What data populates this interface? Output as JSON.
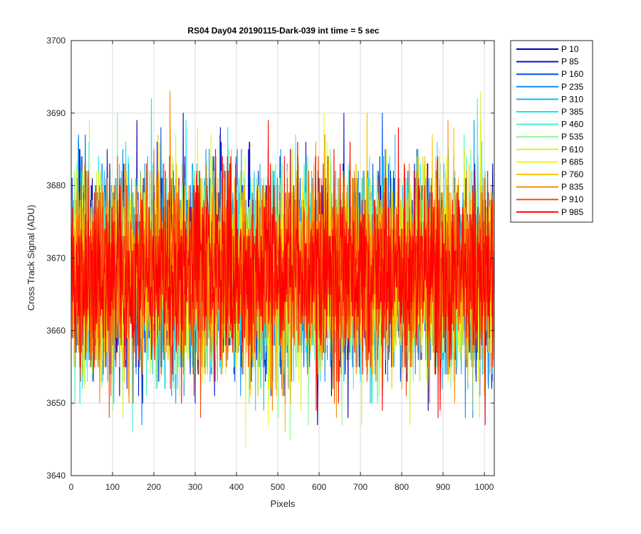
{
  "chart_data": {
    "type": "line",
    "title": "RS04 Day04 20190115-Dark-039 int time = 5 sec",
    "xlabel": "Pixels",
    "ylabel": "Cross Track Signal (ADU)",
    "xlim": [
      0,
      1024
    ],
    "ylim": [
      3640,
      3700
    ],
    "x_ticks": [
      0,
      100,
      200,
      300,
      400,
      500,
      600,
      700,
      800,
      900,
      1000
    ],
    "y_ticks": [
      3640,
      3650,
      3660,
      3670,
      3680,
      3690,
      3700
    ],
    "grid": true,
    "legend_position": "outside-top-right",
    "n_points": 1024,
    "noise": {
      "mean": 3668,
      "sigma": 6.5
    },
    "series": [
      {
        "name": "P 10",
        "color": "#0000ab"
      },
      {
        "name": "P 85",
        "color": "#0014d2"
      },
      {
        "name": "P 160",
        "color": "#0050e6"
      },
      {
        "name": "P 235",
        "color": "#0f8cf2"
      },
      {
        "name": "P 310",
        "color": "#1eb4ff"
      },
      {
        "name": "P 385",
        "color": "#19e1f0"
      },
      {
        "name": "P 460",
        "color": "#4cf0c8"
      },
      {
        "name": "P 535",
        "color": "#8cf58c"
      },
      {
        "name": "P 610",
        "color": "#c8fa3c"
      },
      {
        "name": "P 685",
        "color": "#f5f514"
      },
      {
        "name": "P 760",
        "color": "#f8c000"
      },
      {
        "name": "P 835",
        "color": "#fa8c00"
      },
      {
        "name": "P 910",
        "color": "#f54b0a"
      },
      {
        "name": "P 985",
        "color": "#ff0000"
      }
    ]
  }
}
